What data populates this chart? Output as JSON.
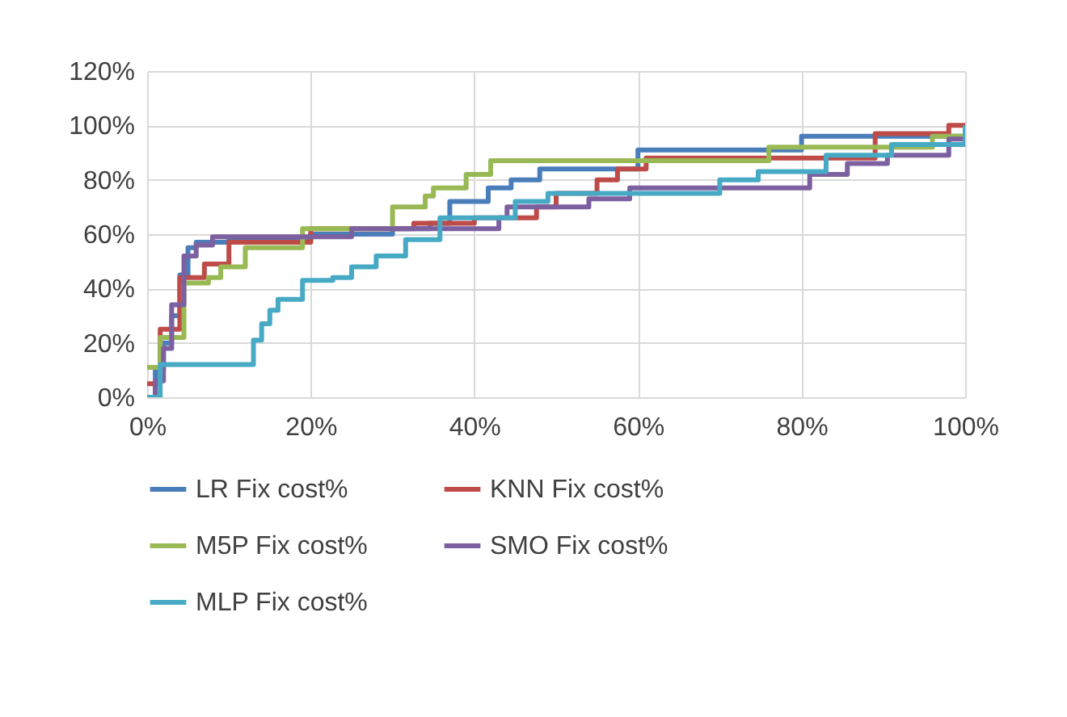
{
  "chart_data": {
    "type": "step",
    "xlim": [
      0,
      100
    ],
    "xticks": [
      {
        "value": 0,
        "label": "0%"
      },
      {
        "value": 20,
        "label": "20%"
      },
      {
        "value": 40,
        "label": "40%"
      },
      {
        "value": 60,
        "label": "60%"
      },
      {
        "value": 80,
        "label": "80%"
      },
      {
        "value": 100,
        "label": "100%"
      }
    ],
    "ylim": [
      0,
      120
    ],
    "yticks": [
      {
        "value": 0,
        "label": "0%"
      },
      {
        "value": 20,
        "label": "20%"
      },
      {
        "value": 40,
        "label": "40%"
      },
      {
        "value": 60,
        "label": "60%"
      },
      {
        "value": 80,
        "label": "80%"
      },
      {
        "value": 100,
        "label": "100%"
      },
      {
        "value": 120,
        "label": "120%"
      }
    ],
    "grid": true,
    "legend": "bottom",
    "series": [
      {
        "name": "LR Fix cost%",
        "color": "#4a7ebb",
        "x": [
          0,
          1,
          2,
          3,
          4,
          5,
          6,
          10,
          20,
          30,
          34.6,
          37,
          41.7,
          44.5,
          48,
          60,
          80,
          99,
          100
        ],
        "values": [
          0,
          10,
          20,
          30,
          45,
          55,
          57,
          58,
          60,
          62,
          64,
          72,
          77,
          80,
          84,
          91,
          96,
          96,
          100
        ]
      },
      {
        "name": "KNN Fix cost%",
        "color": "#be4b48",
        "x": [
          0,
          1.6,
          4,
          7,
          10,
          20,
          32.6,
          40,
          47.6,
          50,
          55,
          57.5,
          61,
          89,
          98,
          100
        ],
        "values": [
          5,
          25,
          44,
          49,
          57,
          62,
          64,
          66,
          70,
          75,
          80,
          84,
          88,
          97,
          100,
          100
        ]
      },
      {
        "name": "M5P Fix cost%",
        "color": "#98b954",
        "x": [
          0,
          1.6,
          4.5,
          7.5,
          9,
          12,
          19,
          30,
          34,
          35,
          39,
          42,
          76,
          96,
          100
        ],
        "values": [
          11,
          22,
          42,
          44,
          48,
          55,
          62,
          70,
          74,
          77,
          82,
          87,
          92,
          96,
          100
        ]
      },
      {
        "name": "SMO Fix cost%",
        "color": "#7d60a0",
        "x": [
          0,
          1,
          2,
          3,
          4.5,
          6,
          8,
          25,
          43,
          44,
          54,
          59,
          81,
          85.6,
          90.5,
          98,
          100
        ],
        "values": [
          0,
          6,
          18,
          34,
          52,
          56,
          59,
          62,
          66,
          70,
          73,
          77,
          82,
          86,
          89,
          95,
          100
        ]
      },
      {
        "name": "MLP Fix cost%",
        "color": "#46aac5",
        "x": [
          0,
          1.6,
          13,
          14,
          15,
          16,
          19,
          22.7,
          25,
          28,
          31.6,
          35.8,
          45,
          49,
          70,
          74.7,
          83,
          91,
          100
        ],
        "values": [
          0,
          12,
          21,
          27,
          32,
          36,
          43,
          44,
          48,
          52,
          58,
          66,
          72,
          75,
          80,
          83,
          89,
          93,
          100
        ]
      }
    ]
  }
}
